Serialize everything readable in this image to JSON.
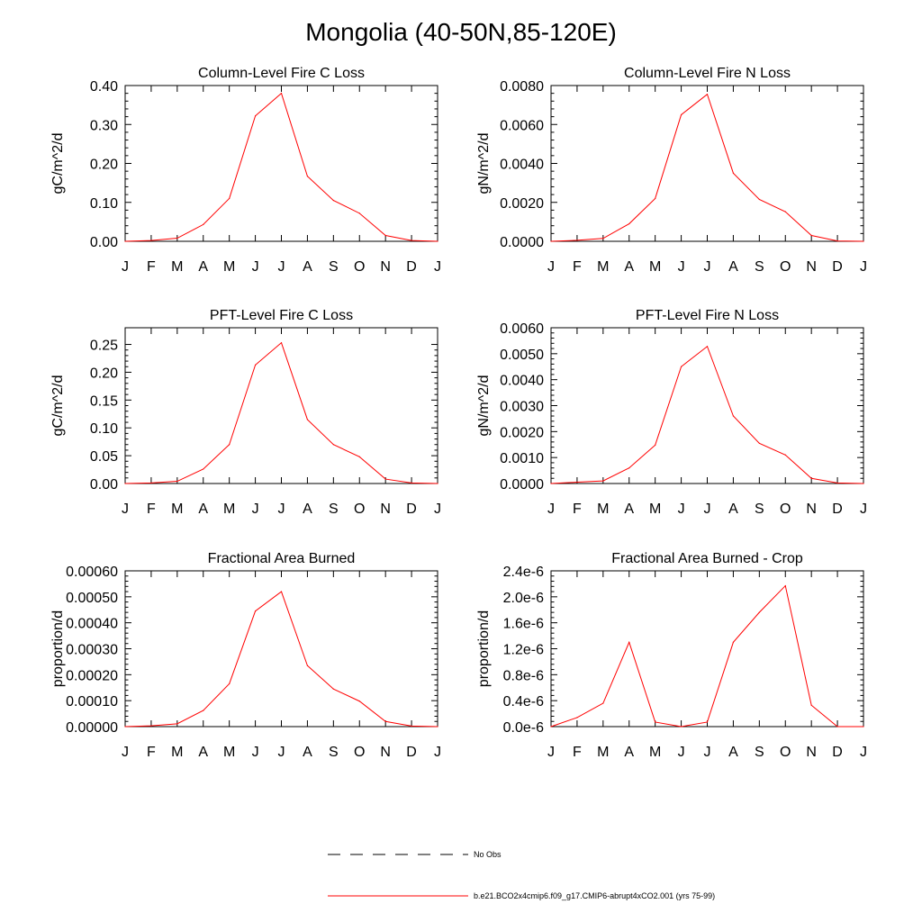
{
  "page": {
    "title": "Mongolia (40-50N,85-120E)"
  },
  "legend": {
    "obs_label": "No Obs",
    "model_label": "b.e21.BCO2x4cmip6.f09_g17.CMIP6-abrupt4xCO2.001 (yrs 75-99)",
    "obs_color": "#000000",
    "model_color": "#ff0000"
  },
  "chart_data": [
    {
      "type": "line",
      "title": "Column-Level Fire C Loss",
      "ylabel": "gC/m^2/d",
      "xlabel": "",
      "categories": [
        "J",
        "F",
        "M",
        "A",
        "M",
        "J",
        "J",
        "A",
        "S",
        "O",
        "N",
        "D",
        "J"
      ],
      "ylim": [
        0,
        0.4
      ],
      "yticks": [
        0,
        0.1,
        0.2,
        0.3,
        0.4
      ],
      "ytick_labels": [
        "0.00",
        "0.10",
        "0.20",
        "0.30",
        "0.40"
      ],
      "series": [
        {
          "name": "b.e21.BCO2x4cmip6.f09_g17.CMIP6-abrupt4xCO2.001 (yrs 75-99)",
          "color": "#ff0000",
          "values": [
            0.0,
            0.002,
            0.008,
            0.043,
            0.11,
            0.322,
            0.38,
            0.167,
            0.105,
            0.072,
            0.015,
            0.002,
            0.0
          ]
        }
      ]
    },
    {
      "type": "line",
      "title": "Column-Level Fire N Loss",
      "ylabel": "gN/m^2/d",
      "xlabel": "",
      "categories": [
        "J",
        "F",
        "M",
        "A",
        "M",
        "J",
        "J",
        "A",
        "S",
        "O",
        "N",
        "D",
        "J"
      ],
      "ylim": [
        0,
        0.008
      ],
      "yticks": [
        0,
        0.002,
        0.004,
        0.006,
        0.008
      ],
      "ytick_labels": [
        "0.0000",
        "0.0020",
        "0.0040",
        "0.0060",
        "0.0080"
      ],
      "series": [
        {
          "name": "b.e21.BCO2x4cmip6.f09_g17.CMIP6-abrupt4xCO2.001 (yrs 75-99)",
          "color": "#ff0000",
          "values": [
            0.0,
            5e-05,
            0.00015,
            0.0009,
            0.0022,
            0.0065,
            0.00755,
            0.0035,
            0.00215,
            0.00152,
            0.0003,
            2e-05,
            0.0
          ]
        }
      ]
    },
    {
      "type": "line",
      "title": "PFT-Level Fire C Loss",
      "ylabel": "gC/m^2/d",
      "xlabel": "",
      "categories": [
        "J",
        "F",
        "M",
        "A",
        "M",
        "J",
        "J",
        "A",
        "S",
        "O",
        "N",
        "D",
        "J"
      ],
      "ylim": [
        0,
        0.28
      ],
      "yticks": [
        0,
        0.05,
        0.1,
        0.15,
        0.2,
        0.25
      ],
      "ytick_labels": [
        "0.00",
        "0.05",
        "0.10",
        "0.15",
        "0.20",
        "0.25"
      ],
      "series": [
        {
          "name": "b.e21.BCO2x4cmip6.f09_g17.CMIP6-abrupt4xCO2.001 (yrs 75-99)",
          "color": "#ff0000",
          "values": [
            0.0,
            0.001,
            0.004,
            0.026,
            0.07,
            0.213,
            0.253,
            0.115,
            0.07,
            0.048,
            0.008,
            0.001,
            0.0
          ]
        }
      ]
    },
    {
      "type": "line",
      "title": "PFT-Level Fire N Loss",
      "ylabel": "gN/m^2/d",
      "xlabel": "",
      "categories": [
        "J",
        "F",
        "M",
        "A",
        "M",
        "J",
        "J",
        "A",
        "S",
        "O",
        "N",
        "D",
        "J"
      ],
      "ylim": [
        0,
        0.006
      ],
      "yticks": [
        0,
        0.001,
        0.002,
        0.003,
        0.004,
        0.005,
        0.006
      ],
      "ytick_labels": [
        "0.0000",
        "0.0010",
        "0.0020",
        "0.0030",
        "0.0040",
        "0.0050",
        "0.0060"
      ],
      "series": [
        {
          "name": "b.e21.BCO2x4cmip6.f09_g17.CMIP6-abrupt4xCO2.001 (yrs 75-99)",
          "color": "#ff0000",
          "values": [
            0.0,
            5e-05,
            0.0001,
            0.0006,
            0.00148,
            0.0045,
            0.00528,
            0.0026,
            0.00155,
            0.0011,
            0.0002,
            2e-05,
            0.0
          ]
        }
      ]
    },
    {
      "type": "line",
      "title": "Fractional Area Burned",
      "ylabel": "proportion/d",
      "xlabel": "",
      "categories": [
        "J",
        "F",
        "M",
        "A",
        "M",
        "J",
        "J",
        "A",
        "S",
        "O",
        "N",
        "D",
        "J"
      ],
      "ylim": [
        0,
        0.0006
      ],
      "yticks": [
        0,
        0.0001,
        0.0002,
        0.0003,
        0.0004,
        0.0005,
        0.0006
      ],
      "ytick_labels": [
        "0.00000",
        "0.00010",
        "0.00020",
        "0.00030",
        "0.00040",
        "0.00050",
        "0.00060"
      ],
      "series": [
        {
          "name": "b.e21.BCO2x4cmip6.f09_g17.CMIP6-abrupt4xCO2.001 (yrs 75-99)",
          "color": "#ff0000",
          "values": [
            0.0,
            3e-06,
            1.1e-05,
            6.2e-05,
            0.000165,
            0.000445,
            0.00052,
            0.000235,
            0.000145,
            9.8e-05,
            2e-05,
            2e-06,
            0.0
          ]
        }
      ]
    },
    {
      "type": "line",
      "title": "Fractional Area Burned - Crop",
      "ylabel": "proportion/d",
      "xlabel": "",
      "categories": [
        "J",
        "F",
        "M",
        "A",
        "M",
        "J",
        "J",
        "A",
        "S",
        "O",
        "N",
        "D",
        "J"
      ],
      "ylim": [
        0,
        2.4e-06
      ],
      "yticks": [
        0,
        4e-07,
        8e-07,
        1.2e-06,
        1.6e-06,
        2e-06,
        2.4e-06
      ],
      "ytick_labels": [
        "0.0e-6",
        "0.4e-6",
        "0.8e-6",
        "1.2e-6",
        "1.6e-6",
        "2.0e-6",
        "2.4e-6"
      ],
      "series": [
        {
          "name": "b.e21.BCO2x4cmip6.f09_g17.CMIP6-abrupt4xCO2.001 (yrs 75-99)",
          "color": "#ff0000",
          "values": [
            0.0,
            1.4e-07,
            3.6e-07,
            1.3e-06,
            7e-08,
            0.0,
            7e-08,
            1.3e-06,
            1.76e-06,
            2.17e-06,
            3.3e-07,
            0.0,
            0.0
          ]
        }
      ]
    }
  ]
}
